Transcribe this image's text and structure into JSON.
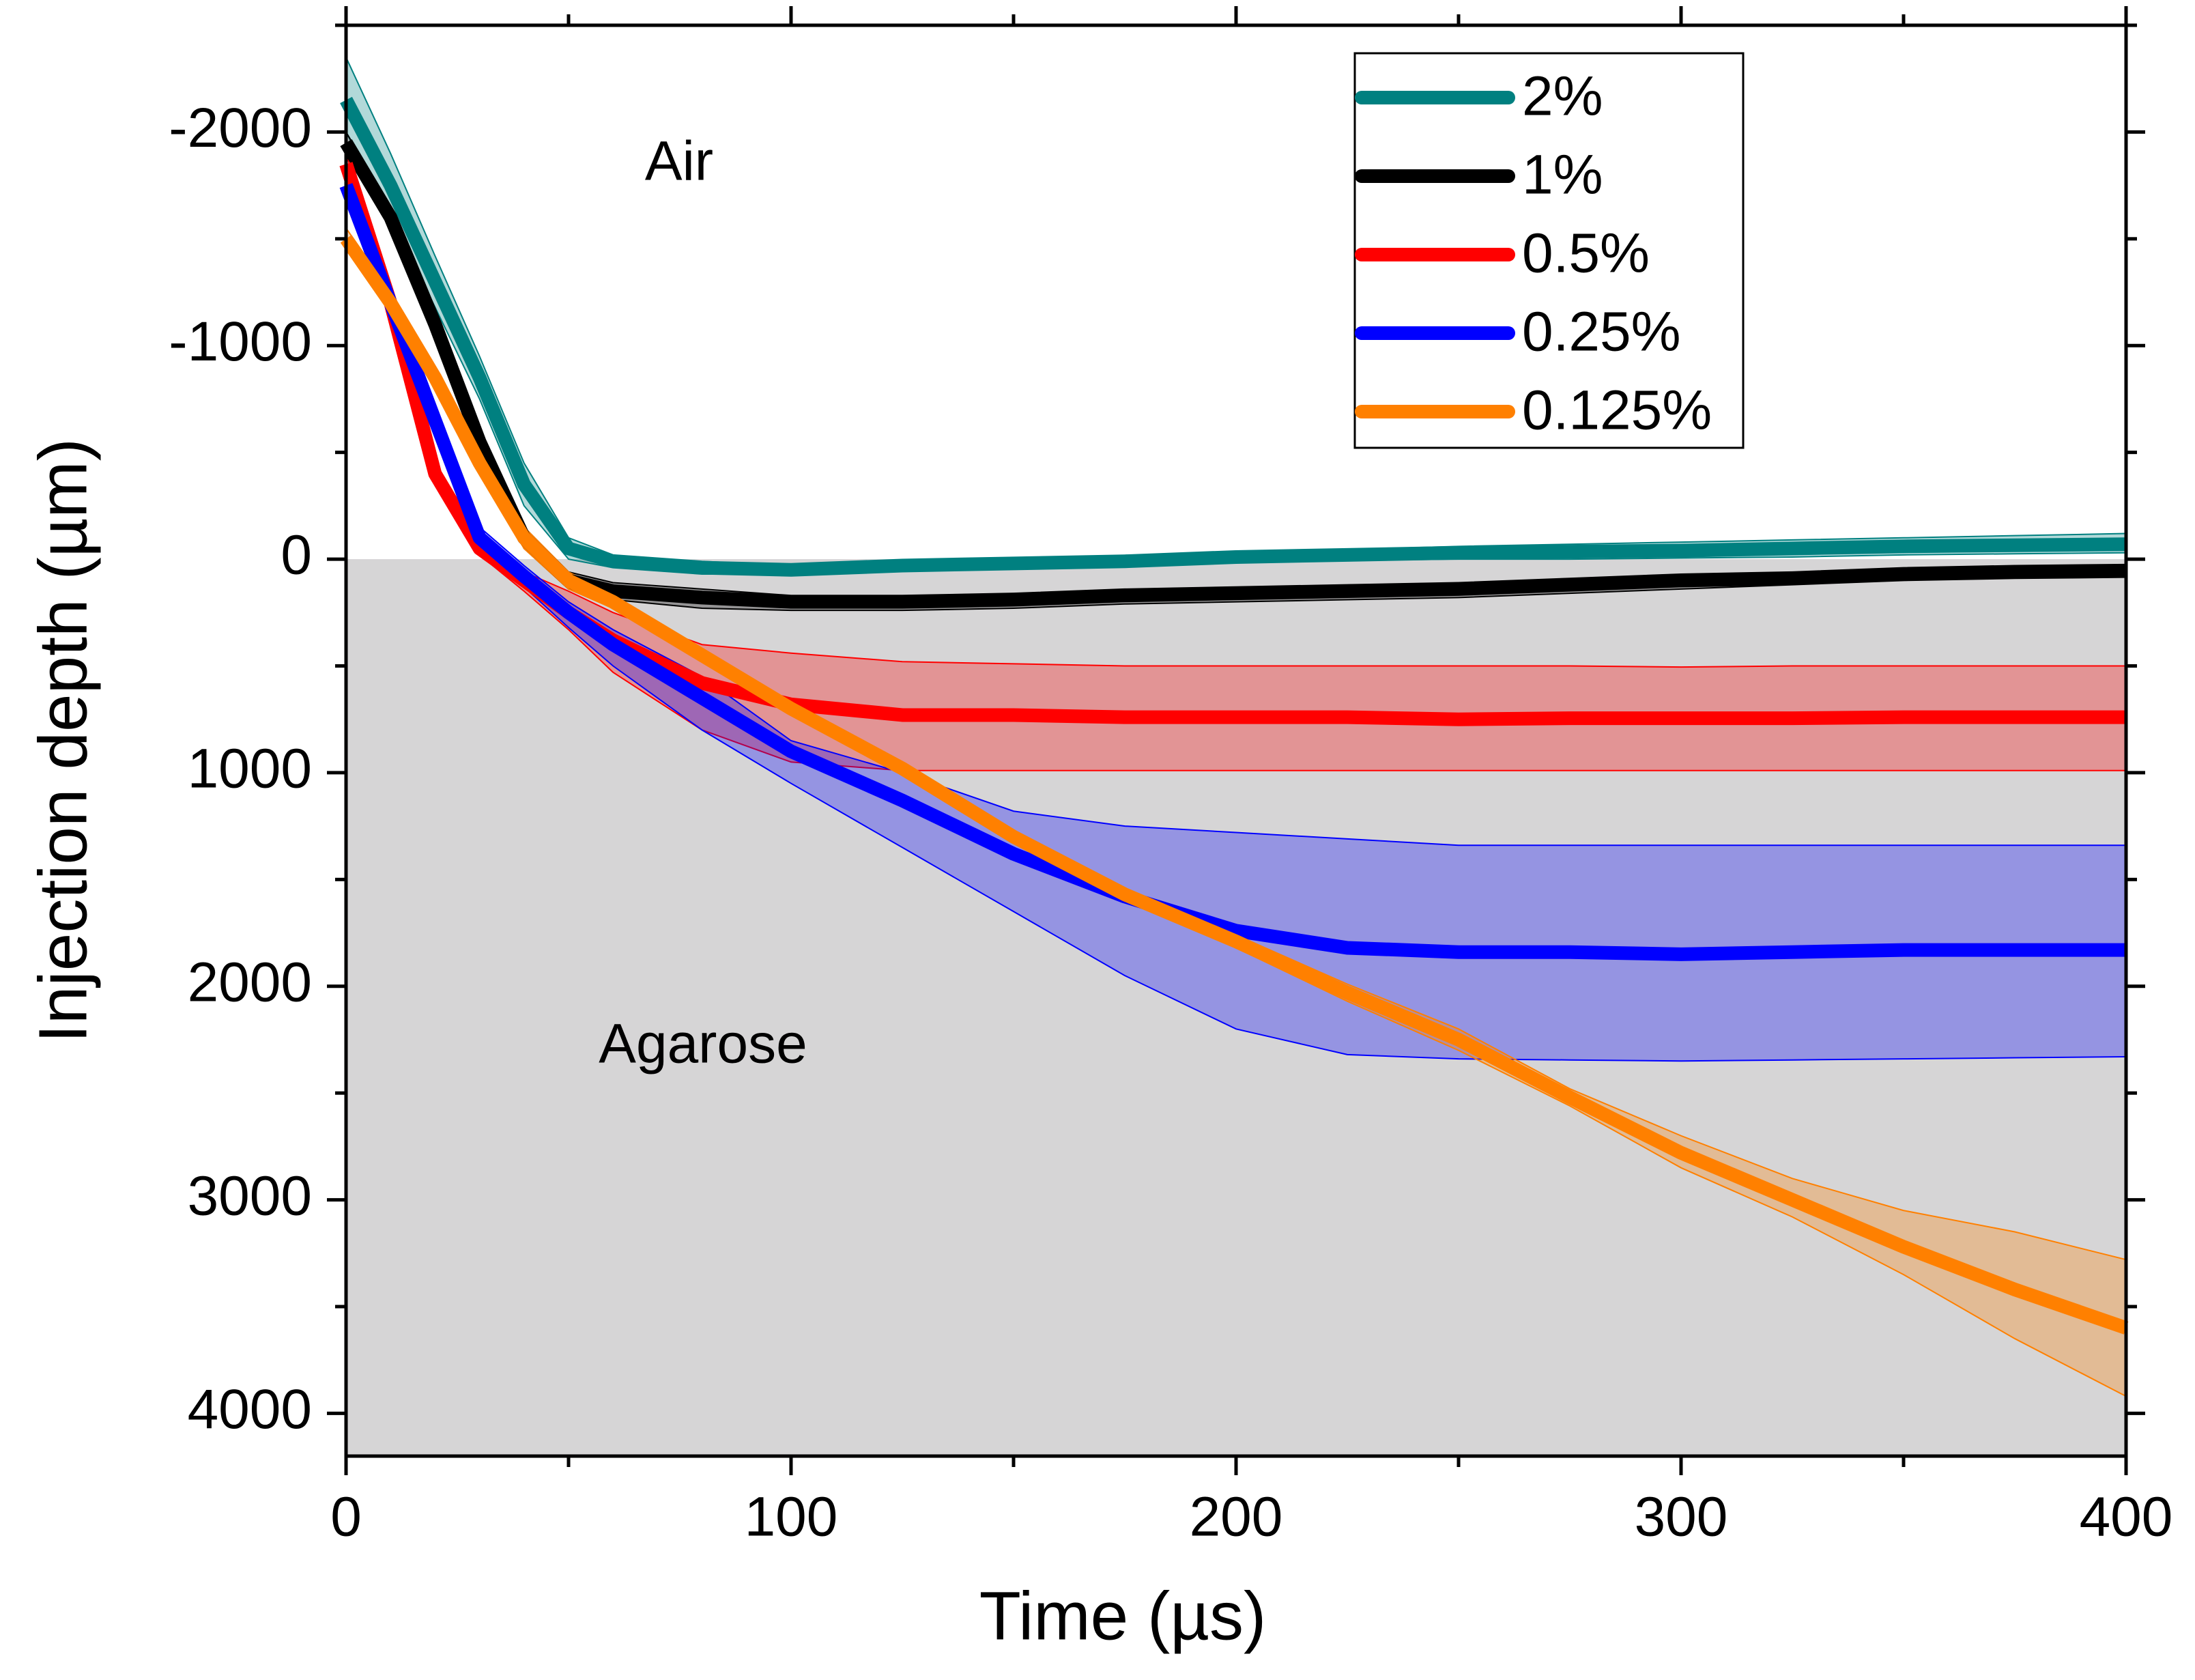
{
  "chart_data": {
    "type": "line",
    "xlabel": "Time (µs)",
    "ylabel": "Injection depth (µm)",
    "xlim": [
      0,
      400
    ],
    "ylim": [
      4200,
      -2500
    ],
    "xticks": [
      0,
      100,
      200,
      300,
      400
    ],
    "yticks": [
      -2000,
      -1000,
      0,
      1000,
      2000,
      3000,
      4000
    ],
    "xminorticks": [
      50,
      150,
      250,
      350
    ],
    "yminorticks": [
      -2500,
      -1500,
      -500,
      500,
      1500,
      2500,
      3500
    ],
    "annotations": [
      "Air"
    ],
    "region": {
      "label": "Agarose",
      "y": [
        0,
        4200
      ],
      "color": "#d6d5d6"
    },
    "legend": "upper right",
    "x": [
      0,
      10,
      20,
      30,
      40,
      50,
      60,
      80,
      100,
      125,
      150,
      175,
      200,
      225,
      250,
      275,
      300,
      325,
      350,
      375,
      400
    ],
    "series": [
      {
        "name": "2%",
        "color": "#008080",
        "values": [
          -2150,
          -1750,
          -1300,
          -850,
          -350,
          -50,
          10,
          40,
          50,
          30,
          20,
          10,
          -10,
          -20,
          -30,
          -35,
          -40,
          -50,
          -60,
          -65,
          -70
        ],
        "lower": [
          -2350,
          -1900,
          -1420,
          -950,
          -450,
          -100,
          -20,
          10,
          30,
          15,
          5,
          -10,
          -30,
          -45,
          -60,
          -70,
          -80,
          -90,
          -100,
          -110,
          -120
        ],
        "upper": [
          -2000,
          -1600,
          -1180,
          -750,
          -250,
          0,
          40,
          70,
          70,
          45,
          35,
          30,
          10,
          5,
          0,
          0,
          -5,
          -10,
          -20,
          -25,
          -30
        ]
      },
      {
        "name": "1%",
        "color": "#000000",
        "values": [
          -1950,
          -1600,
          -1100,
          -550,
          -100,
          100,
          150,
          180,
          200,
          200,
          190,
          170,
          160,
          150,
          140,
          120,
          100,
          90,
          70,
          60,
          55
        ],
        "lower": [
          -2000,
          -1650,
          -1150,
          -600,
          -150,
          60,
          110,
          140,
          170,
          170,
          160,
          140,
          130,
          120,
          110,
          90,
          70,
          60,
          40,
          30,
          25
        ],
        "upper": [
          -1900,
          -1550,
          -1050,
          -500,
          -50,
          140,
          190,
          230,
          240,
          240,
          230,
          210,
          200,
          190,
          180,
          160,
          140,
          120,
          100,
          90,
          85
        ]
      },
      {
        "name": "0.5%",
        "color": "#ff0000",
        "values": [
          -1850,
          -1200,
          -400,
          -50,
          100,
          250,
          380,
          580,
          680,
          730,
          730,
          740,
          740,
          740,
          750,
          745,
          745,
          745,
          740,
          740,
          740
        ],
        "lower": [
          -1900,
          -1250,
          -450,
          -80,
          60,
          150,
          250,
          400,
          440,
          480,
          490,
          500,
          500,
          500,
          500,
          500,
          505,
          500,
          500,
          500,
          500
        ],
        "upper": [
          -1800,
          -1150,
          -350,
          -20,
          150,
          330,
          530,
          800,
          950,
          990,
          990,
          990,
          990,
          990,
          990,
          990,
          990,
          990,
          990,
          990,
          990
        ]
      },
      {
        "name": "0.25%",
        "color": "#0000ff",
        "values": [
          -1750,
          -1200,
          -650,
          -100,
          80,
          250,
          400,
          650,
          900,
          1130,
          1380,
          1580,
          1740,
          1820,
          1840,
          1840,
          1850,
          1840,
          1830,
          1830,
          1830
        ],
        "lower": [
          -1800,
          -1250,
          -700,
          -150,
          30,
          200,
          330,
          550,
          850,
          1000,
          1180,
          1250,
          1280,
          1310,
          1340,
          1340,
          1340,
          1340,
          1340,
          1340,
          1340
        ],
        "upper": [
          -1700,
          -1150,
          -600,
          -50,
          130,
          320,
          500,
          800,
          1050,
          1350,
          1650,
          1950,
          2200,
          2320,
          2340,
          2345,
          2350,
          2345,
          2340,
          2335,
          2330
        ]
      },
      {
        "name": "0.125%",
        "color": "#ff8000",
        "values": [
          -1500,
          -1200,
          -850,
          -450,
          -100,
          100,
          200,
          450,
          700,
          980,
          1300,
          1570,
          1790,
          2030,
          2250,
          2520,
          2780,
          3000,
          3220,
          3420,
          3600
        ],
        "lower": [
          -1550,
          -1250,
          -900,
          -500,
          -150,
          60,
          170,
          420,
          670,
          950,
          1270,
          1540,
          1760,
          1990,
          2200,
          2480,
          2700,
          2900,
          3050,
          3150,
          3280
        ],
        "upper": [
          -1450,
          -1150,
          -800,
          -400,
          -50,
          140,
          230,
          480,
          730,
          1010,
          1330,
          1600,
          1820,
          2070,
          2300,
          2560,
          2850,
          3080,
          3350,
          3650,
          3920
        ]
      }
    ]
  }
}
